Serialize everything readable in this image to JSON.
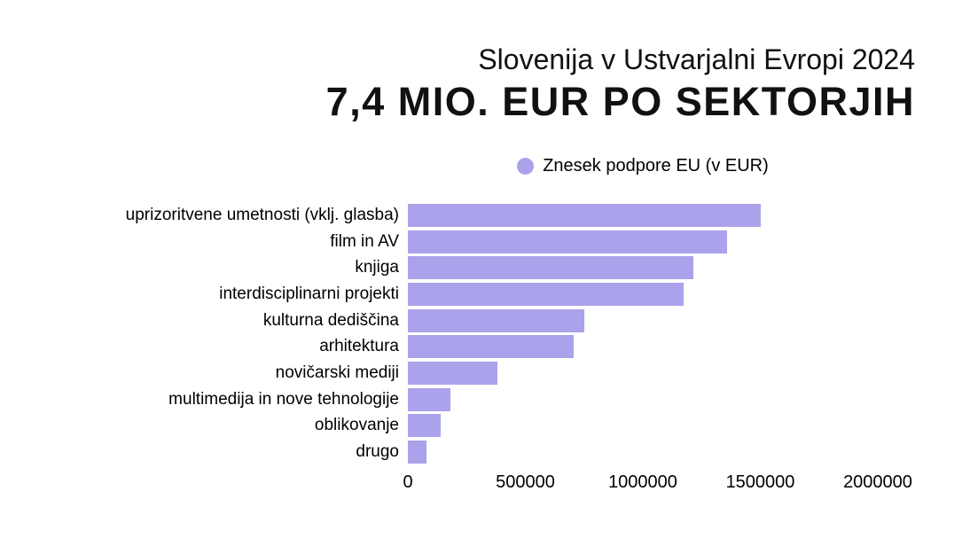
{
  "header": {
    "title": "Slovenija v Ustvarjalni Evropi 2024",
    "subtitle": "7,4 MIO. EUR PO SEKTORJIH"
  },
  "legend": {
    "label": "Znesek podpore EU (v EUR)"
  },
  "colors": {
    "bar": "#aaa2ea",
    "background": "#ffffff",
    "text": "#111111"
  },
  "chart_data": {
    "type": "bar",
    "orientation": "horizontal",
    "title": "Slovenija v Ustvarjalni Evropi 2024",
    "subtitle": "7,4 MIO. EUR PO SEKTORJIH",
    "legend_entries": [
      "Znesek podpore EU (v EUR)"
    ],
    "legend_position": "top-center",
    "categories": [
      "uprizoritvene umetnosti (vklj. glasba)",
      "film in AV",
      "knjiga",
      "interdisciplinarni projekti",
      "kulturna dediščina",
      "arhitektura",
      "novičarski mediji",
      "multimedija in nove tehnologije",
      "oblikovanje",
      "drugo"
    ],
    "values": [
      1500000,
      1360000,
      1215000,
      1175000,
      750000,
      705000,
      380000,
      180000,
      140000,
      80000
    ],
    "xlabel": "",
    "ylabel": "",
    "xlim": [
      0,
      2000000
    ],
    "xticks": [
      0,
      500000,
      1000000,
      1500000,
      2000000
    ],
    "xtick_labels": [
      "0",
      "500000",
      "1000000",
      "1500000",
      "2000000"
    ],
    "grid": false,
    "bar_color": "#aaa2ea"
  }
}
